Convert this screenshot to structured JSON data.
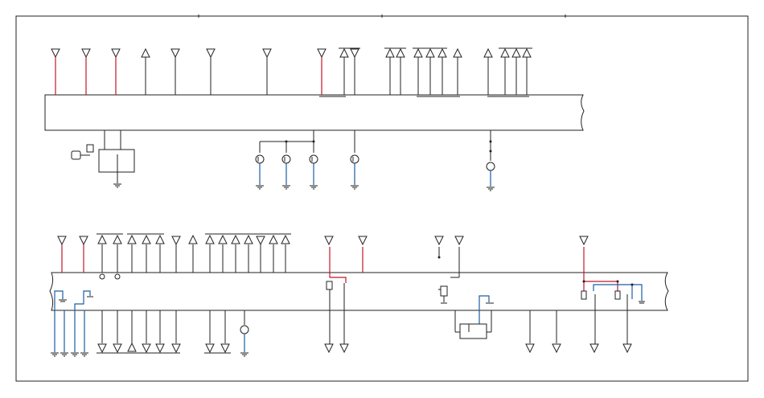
{
  "diagram": {
    "colors": {
      "frame": "#222222",
      "wire_black": "#222222",
      "wire_red": "#c0182a",
      "wire_blue": "#1a5fa0"
    },
    "module_top": {
      "connectors_in": 15,
      "connectors_out": 4
    },
    "module_bottom": {
      "connectors_in": 16,
      "connectors_out": 14
    },
    "icons": [
      "key-icon",
      "switch-icon",
      "lamp-icon",
      "transistor-icon",
      "ground-icon",
      "relay-icon",
      "connector-icon"
    ]
  }
}
